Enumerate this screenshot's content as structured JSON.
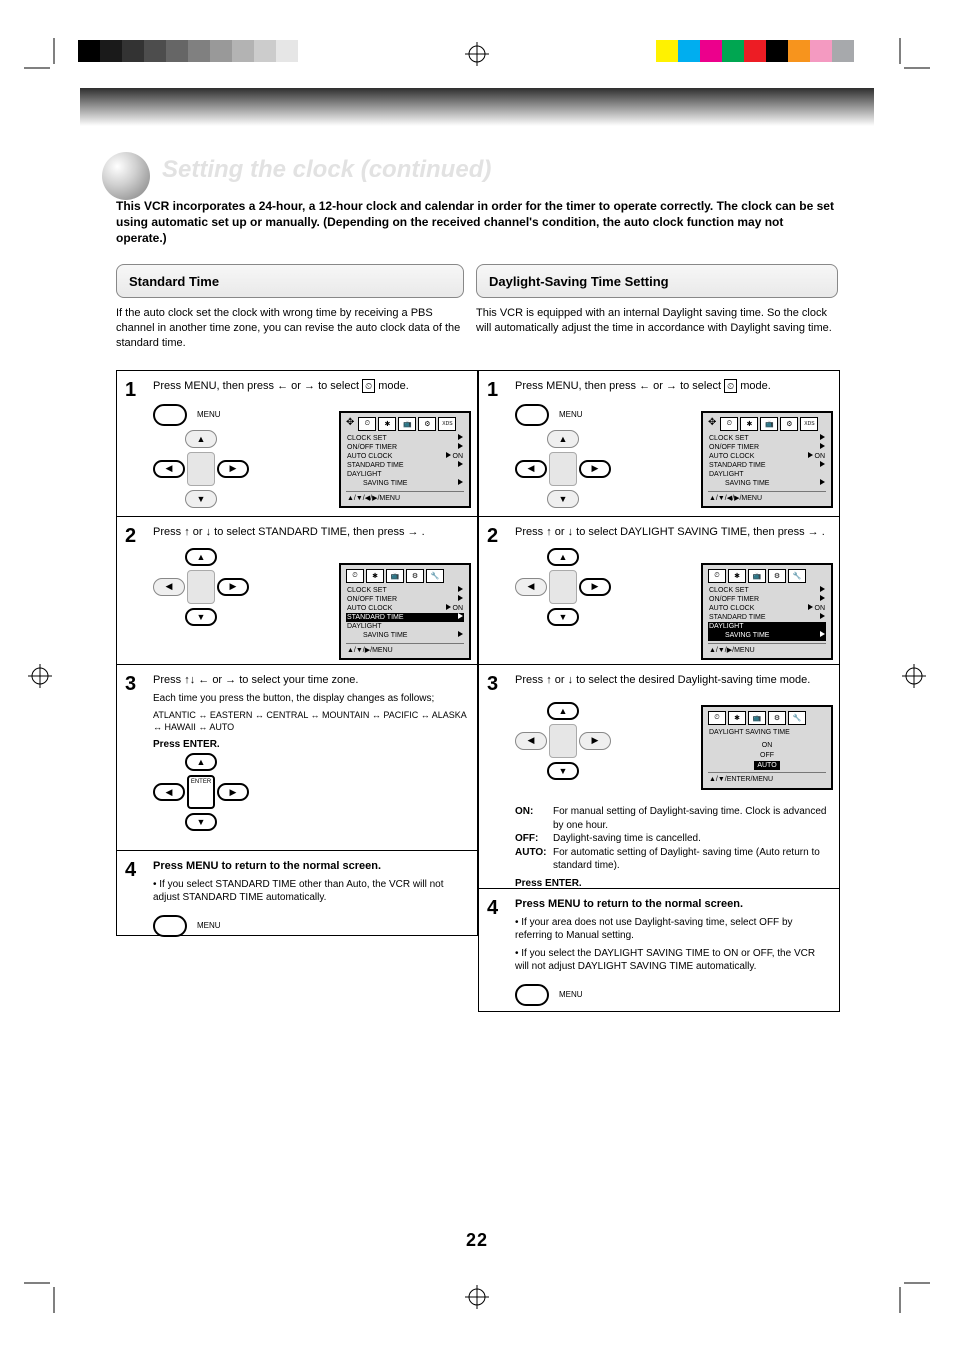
{
  "page": {
    "number": "22"
  },
  "header": {
    "title": "Setting the clock (continued)",
    "subtitle": "This VCR incorporates a 24-hour, a 12-hour clock and calendar in order for the timer to operate correctly. The clock can be set using automatic set up or manually. (Depending on the received channel's condition, the auto clock function may not operate.)"
  },
  "sections": {
    "left": {
      "tab": "Standard Time",
      "lede": "If the auto clock set the clock with wrong time by receiving a PBS channel in another time zone, you can revise the auto clock data of the standard time."
    },
    "right": {
      "tab": "Daylight-Saving Time Setting",
      "lede": "This VCR is equipped with an internal Daylight saving time. So the clock will automatically adjust the time in accordance with Daylight saving time."
    }
  },
  "steps_left": {
    "s1": {
      "num": "1",
      "head_a": "Press MENU, then press",
      "head_b": "or",
      "head_c": "to select",
      "icon": "CLOCK",
      "tail": "mode.",
      "menu_label": "MENU"
    },
    "s2": {
      "num": "2",
      "head_a": "Press",
      "head_b": "or",
      "head_c": "to select STANDARD TIME, then press",
      "tail": "."
    },
    "s3": {
      "num": "3",
      "head_a": "Press",
      "head_b": "or",
      "head_c": "to select your time zone.",
      "body1": "Each time you press the button, the display changes as follows;",
      "body2": "ATLANTIC ↔ EASTERN ↔ CENTRAL ↔ MOUNTAIN ↔ PACIFIC ↔ ALASKA ↔ HAWAII ↔ AUTO",
      "body3": "Press ENTER.",
      "enter_label": "ENTER"
    },
    "s4": {
      "num": "4",
      "head": "Press MENU to return to the normal screen.",
      "note": "• If you select STANDARD TIME other than Auto, the VCR will not adjust STANDARD TIME automatically.",
      "menu_label": "MENU"
    }
  },
  "steps_right": {
    "s1": {
      "num": "1",
      "head_a": "Press MENU, then press",
      "head_b": "or",
      "head_c": "to select",
      "icon": "CLOCK",
      "tail": "mode.",
      "menu_label": "MENU"
    },
    "s2": {
      "num": "2",
      "head_a": "Press",
      "head_b": "or",
      "head_c": "to select DAYLIGHT SAVING TIME, then press",
      "tail": "."
    },
    "s3": {
      "num": "3",
      "head_a": "Press",
      "head_b": "or",
      "head_c": "to select the desired Daylight-saving time mode.",
      "opt_on_l": "ON:",
      "opt_on_r": "For manual setting of Daylight-saving time. Clock is advanced by one hour.",
      "opt_off_l": "OFF:",
      "opt_off_r": "Daylight-saving time is cancelled.",
      "opt_auto_l": "AUTO:",
      "opt_auto_r": "For automatic setting of Daylight- saving time (Auto return to standard time).",
      "body_end": "Press ENTER."
    },
    "s4": {
      "num": "4",
      "head": "Press MENU to return to the normal screen.",
      "note1": "• If your area does not use Daylight-saving time, select OFF by referring to Manual setting.",
      "note2": "• If you select the DAYLIGHT SAVING TIME to ON or OFF, the VCR will not adjust DAYLIGHT SAVING TIME automatically.",
      "menu_label": "MENU"
    }
  },
  "osd": {
    "tabs": [
      "⏲",
      "✱",
      "📺",
      "⚙",
      "🔧",
      "XDS"
    ],
    "rows": {
      "clock_set": "CLOCK SET",
      "onoff": "ON/OFF TIMER",
      "auto_clock": "AUTO CLOCK",
      "auto_clock_val": "ON",
      "standard": "STANDARD TIME",
      "daylight1": "DAYLIGHT",
      "daylight2": "SAVING TIME"
    },
    "foot_full": "▲/▼/◀/▶/MENU",
    "foot_ud": "▲/▼/▶/MENU",
    "dst": {
      "title": "DAYLIGHT SAVING TIME",
      "on": "ON",
      "off": "OFF",
      "auto": "AUTO",
      "foot": "▲/▼/ENTER/MENU"
    }
  },
  "colors": {
    "grayscale": [
      "#000000",
      "#1a1a1a",
      "#333333",
      "#4d4d4d",
      "#666666",
      "#808080",
      "#999999",
      "#b3b3b3",
      "#cccccc",
      "#e6e6e6",
      "#ffffff"
    ],
    "cmyk_set": [
      "#fff200",
      "#00aeef",
      "#ec008c",
      "#00a651",
      "#ed1c24",
      "#000000",
      "#f7941d",
      "#f49ac1",
      "#a7a9ac",
      "#ffffff"
    ]
  }
}
